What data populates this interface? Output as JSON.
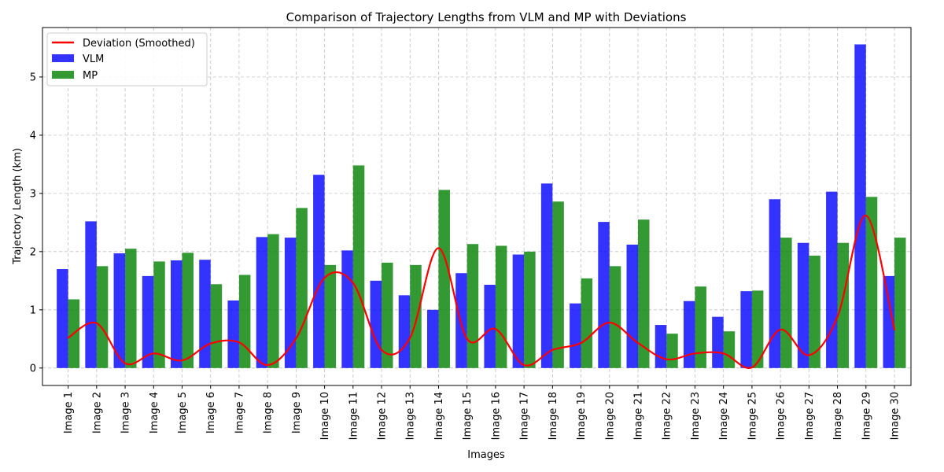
{
  "chart_data": {
    "type": "bar",
    "title": "Comparison of Trajectory Lengths from VLM and MP with Deviations",
    "xlabel": "Images",
    "ylabel": "Trajectory Length (km)",
    "ylim": [
      -0.3,
      5.85
    ],
    "yticks": [
      0,
      1,
      2,
      3,
      4,
      5
    ],
    "grid": true,
    "legend_position": "top-left",
    "categories": [
      "Image 1",
      "Image 2",
      "Image 3",
      "Image 4",
      "Image 5",
      "Image 6",
      "Image 7",
      "Image 8",
      "Image 9",
      "Image 10",
      "Image 11",
      "Image 12",
      "Image 13",
      "Image 14",
      "Image 15",
      "Image 16",
      "Image 17",
      "Image 18",
      "Image 19",
      "Image 20",
      "Image 21",
      "Image 22",
      "Image 23",
      "Image 24",
      "Image 25",
      "Image 26",
      "Image 27",
      "Image 28",
      "Image 29",
      "Image 30"
    ],
    "series": [
      {
        "name": "VLM",
        "kind": "bar",
        "color": "#0000ff",
        "values": [
          1.7,
          2.52,
          1.97,
          1.58,
          1.85,
          1.86,
          1.16,
          2.25,
          2.24,
          3.32,
          2.02,
          1.5,
          1.25,
          1.0,
          1.63,
          1.43,
          1.95,
          3.17,
          1.11,
          2.51,
          2.12,
          0.74,
          1.15,
          0.88,
          1.32,
          2.9,
          2.15,
          3.03,
          5.56,
          1.58
        ]
      },
      {
        "name": "MP",
        "kind": "bar",
        "color": "#008000",
        "values": [
          1.18,
          1.75,
          2.05,
          1.83,
          1.98,
          1.44,
          1.6,
          2.3,
          2.75,
          1.77,
          3.48,
          1.81,
          1.77,
          3.06,
          2.13,
          2.1,
          2.0,
          2.86,
          1.54,
          1.75,
          2.55,
          0.59,
          1.4,
          0.63,
          1.33,
          2.24,
          1.93,
          2.15,
          2.94,
          2.24
        ]
      },
      {
        "name": "Deviation (Smoothed)",
        "kind": "line",
        "color": "#ff0000",
        "values": [
          0.52,
          0.77,
          0.08,
          0.25,
          0.13,
          0.42,
          0.44,
          0.05,
          0.51,
          1.55,
          1.46,
          0.31,
          0.52,
          2.06,
          0.5,
          0.67,
          0.05,
          0.31,
          0.43,
          0.78,
          0.43,
          0.15,
          0.25,
          0.25,
          0.01,
          0.66,
          0.22,
          0.88,
          2.62,
          0.66
        ]
      }
    ]
  }
}
